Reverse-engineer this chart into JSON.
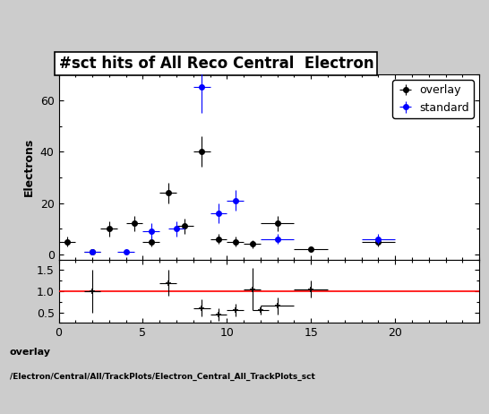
{
  "title": "#sct hits of All Reco Central  Electron",
  "ylabel_main": "Electrons",
  "footer_line1": "overlay",
  "footer_line2": "/Electron/Central/All/TrackPlots/Electron_Central_All_TrackPlots_sct",
  "overlay_x": [
    0.5,
    2.0,
    3.0,
    4.5,
    5.5,
    6.5,
    7.5,
    8.5,
    9.5,
    10.5,
    11.5,
    13.0,
    15.0,
    19.0
  ],
  "overlay_y": [
    5.0,
    1.0,
    10.0,
    12.0,
    5.0,
    24.0,
    11.0,
    40.0,
    6.0,
    5.0,
    4.0,
    12.0,
    2.0,
    5.0
  ],
  "overlay_xerr": [
    0.5,
    0.5,
    0.5,
    0.5,
    0.5,
    0.5,
    0.5,
    0.5,
    0.5,
    0.5,
    0.5,
    1.0,
    1.0,
    1.0
  ],
  "overlay_yerr": [
    2.0,
    0.5,
    3.0,
    3.0,
    2.0,
    4.0,
    3.0,
    6.0,
    2.0,
    2.0,
    1.5,
    3.0,
    1.0,
    2.0
  ],
  "standard_x": [
    2.0,
    4.0,
    5.5,
    7.0,
    8.5,
    9.5,
    10.5,
    13.0,
    19.0
  ],
  "standard_y": [
    1.0,
    1.0,
    9.0,
    10.0,
    65.0,
    16.0,
    21.0,
    6.0,
    6.0
  ],
  "standard_xerr": [
    0.5,
    0.5,
    0.5,
    0.5,
    0.5,
    0.5,
    0.5,
    1.0,
    1.0
  ],
  "standard_yerr": [
    0.5,
    0.5,
    3.0,
    3.0,
    10.0,
    4.0,
    4.0,
    2.0,
    2.0
  ],
  "ratio_x": [
    2.0,
    6.5,
    8.5,
    9.5,
    10.5,
    11.5,
    12.0,
    13.0,
    15.0
  ],
  "ratio_y": [
    1.0,
    1.2,
    0.6,
    0.45,
    0.55,
    1.05,
    0.55,
    0.65,
    1.05
  ],
  "ratio_xerr": [
    0.5,
    0.5,
    0.5,
    0.5,
    0.5,
    0.5,
    0.5,
    1.0,
    1.0
  ],
  "ratio_yerr": [
    0.5,
    0.3,
    0.2,
    0.15,
    0.15,
    0.5,
    0.1,
    0.2,
    0.2
  ],
  "main_ylim": [
    -2,
    70
  ],
  "main_xlim": [
    0,
    25
  ],
  "ratio_ylim": [
    0.25,
    1.75
  ],
  "ratio_xlim": [
    0,
    25
  ],
  "overlay_color": "#000000",
  "standard_color": "#0000ff",
  "ratio_line_color": "#ff0000",
  "marker_size": 4,
  "title_fontsize": 12,
  "label_fontsize": 9,
  "tick_fontsize": 9,
  "legend_fontsize": 9,
  "bg_color": "#cccccc"
}
